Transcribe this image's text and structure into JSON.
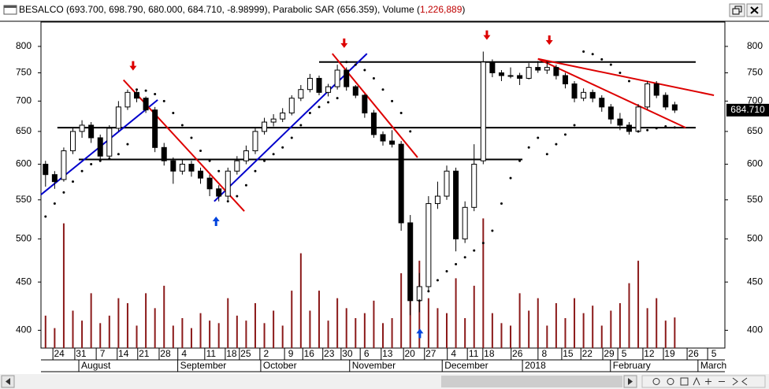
{
  "chart_data": {
    "type": "candlestick",
    "header": {
      "text": "BESALCO (693.700, 698.790, 680.000, 684.710, -8.98999), Parabolic SAR (656.359), Volume (",
      "volume": "1,226,889",
      "suffix": ")"
    },
    "last_label": "684.710",
    "log": true,
    "grid": false,
    "xlim": [
      0,
      150
    ],
    "ylim": [
      383,
      849
    ],
    "yticks": [
      400,
      450,
      500,
      550,
      600,
      650,
      700,
      750,
      800
    ],
    "y2lim": [
      0,
      6000000
    ],
    "xticks": [
      {
        "value": 4.0,
        "label": "24"
      },
      {
        "value": 8.8,
        "label": "31"
      },
      {
        "value": 13.5,
        "label": "7"
      },
      {
        "value": 18.1,
        "label": "14"
      },
      {
        "value": 22.6,
        "label": "21"
      },
      {
        "value": 27.3,
        "label": "28"
      },
      {
        "value": 31.4,
        "label": "4"
      },
      {
        "value": 37.3,
        "label": "11"
      },
      {
        "value": 41.8,
        "label": "18"
      },
      {
        "value": 44.9,
        "label": "25"
      },
      {
        "value": 49.4,
        "label": "2"
      },
      {
        "value": 54.8,
        "label": "9"
      },
      {
        "value": 58.8,
        "label": "16"
      },
      {
        "value": 63.2,
        "label": "23"
      },
      {
        "value": 67.2,
        "label": "30"
      },
      {
        "value": 71.4,
        "label": "6"
      },
      {
        "value": 76.0,
        "label": "13"
      },
      {
        "value": 80.9,
        "label": "20"
      },
      {
        "value": 85.5,
        "label": "27"
      },
      {
        "value": 90.5,
        "label": "4"
      },
      {
        "value": 94.9,
        "label": "11"
      },
      {
        "value": 98.3,
        "label": "18"
      },
      {
        "value": 104.5,
        "label": "26"
      },
      {
        "value": 110.4,
        "label": "8"
      },
      {
        "value": 115.6,
        "label": "15"
      },
      {
        "value": 119.8,
        "label": "22"
      },
      {
        "value": 124.6,
        "label": "29"
      },
      {
        "value": 127.9,
        "label": "5"
      },
      {
        "value": 133.4,
        "label": "12"
      },
      {
        "value": 137.9,
        "label": "19"
      },
      {
        "value": 143.1,
        "label": "26"
      },
      {
        "value": 147.6,
        "label": "5"
      }
    ],
    "month_ticks": [
      {
        "value": 8.3,
        "label": "August"
      },
      {
        "value": 30.0,
        "label": "September"
      },
      {
        "value": 48.2,
        "label": "October"
      },
      {
        "value": 67.7,
        "label": "November"
      },
      {
        "value": 88.0,
        "label": "December"
      },
      {
        "value": 105.6,
        "label": "2018"
      },
      {
        "value": 124.9,
        "label": "February"
      },
      {
        "value": 144.1,
        "label": "March"
      }
    ],
    "up_color": "#ffffff",
    "down_color": "#000000",
    "volume_color": "#8b1a1a",
    "sar_color": "#000000",
    "x": [
      1,
      3,
      5,
      7,
      9,
      11,
      13,
      15,
      17,
      19,
      21,
      23,
      25,
      27,
      29,
      31,
      33,
      35,
      37,
      39,
      41,
      43,
      45,
      47,
      49,
      51,
      53,
      55,
      57,
      59,
      61,
      63,
      65,
      67,
      69,
      71,
      73,
      75,
      77,
      79,
      81,
      83,
      85,
      87,
      89,
      91,
      93,
      95,
      97,
      99,
      101,
      103,
      105,
      107,
      109,
      111,
      113,
      115,
      117,
      119,
      121,
      123,
      125,
      127,
      129,
      131,
      133,
      135,
      137,
      139
    ],
    "open": [
      600,
      585,
      578,
      620,
      650,
      660,
      640,
      612,
      655,
      690,
      715,
      705,
      685,
      625,
      605,
      590,
      600,
      590,
      580,
      565,
      555,
      590,
      605,
      620,
      650,
      665,
      670,
      680,
      705,
      720,
      740,
      715,
      725,
      755,
      725,
      710,
      680,
      645,
      635,
      630,
      520,
      430,
      445,
      545,
      555,
      590,
      500,
      540,
      605,
      770,
      750,
      745,
      745,
      740,
      760,
      755,
      760,
      745,
      730,
      705,
      715,
      705,
      690,
      670,
      660,
      650,
      690,
      730,
      710,
      693.7
    ],
    "high": [
      605,
      590,
      625,
      655,
      668,
      665,
      645,
      660,
      700,
      720,
      720,
      708,
      690,
      632,
      610,
      608,
      605,
      595,
      585,
      570,
      595,
      612,
      628,
      655,
      672,
      678,
      688,
      710,
      728,
      748,
      745,
      730,
      765,
      760,
      728,
      712,
      685,
      650,
      652,
      635,
      530,
      460,
      555,
      575,
      598,
      595,
      548,
      630,
      790,
      775,
      755,
      760,
      750,
      768,
      772,
      770,
      765,
      750,
      735,
      722,
      720,
      710,
      695,
      680,
      665,
      695,
      735,
      735,
      715,
      698.79
    ],
    "low": [
      568,
      565,
      575,
      615,
      640,
      632,
      605,
      608,
      650,
      685,
      698,
      680,
      618,
      598,
      572,
      585,
      582,
      572,
      555,
      548,
      550,
      585,
      600,
      615,
      645,
      658,
      665,
      676,
      700,
      715,
      710,
      708,
      720,
      718,
      705,
      672,
      640,
      628,
      625,
      510,
      415,
      418,
      440,
      538,
      550,
      485,
      495,
      535,
      600,
      742,
      735,
      740,
      728,
      738,
      750,
      748,
      738,
      722,
      698,
      700,
      698,
      682,
      662,
      652,
      645,
      648,
      686,
      705,
      685,
      680
    ],
    "close": [
      585,
      575,
      620,
      650,
      660,
      640,
      612,
      655,
      690,
      715,
      705,
      685,
      625,
      605,
      590,
      600,
      590,
      580,
      565,
      555,
      590,
      605,
      620,
      650,
      665,
      670,
      680,
      705,
      720,
      740,
      715,
      725,
      755,
      725,
      710,
      680,
      645,
      635,
      630,
      520,
      430,
      445,
      545,
      555,
      590,
      500,
      540,
      600,
      770,
      750,
      745,
      745,
      740,
      760,
      755,
      760,
      745,
      730,
      705,
      715,
      705,
      690,
      670,
      660,
      650,
      690,
      730,
      710,
      690,
      684.71
    ],
    "sar": [
      528,
      545,
      560,
      575,
      590,
      600,
      605,
      608,
      615,
      630,
      720,
      718,
      712,
      700,
      680,
      660,
      640,
      620,
      605,
      590,
      548,
      555,
      570,
      590,
      605,
      615,
      625,
      640,
      660,
      680,
      690,
      698,
      705,
      770,
      765,
      755,
      740,
      720,
      700,
      680,
      650,
      430,
      440,
      452,
      462,
      470,
      478,
      486,
      495,
      510,
      545,
      580,
      605,
      625,
      640,
      615,
      630,
      645,
      660,
      790,
      785,
      775,
      765,
      750,
      735,
      650,
      652,
      655,
      658,
      656.359
    ],
    "volume": [
      1300000,
      800000,
      5000000,
      1500000,
      1100000,
      2200000,
      1000000,
      1300000,
      2000000,
      1800000,
      900000,
      2200000,
      1600000,
      2500000,
      900000,
      1200000,
      800000,
      1400000,
      1100000,
      1000000,
      2000000,
      1300000,
      1100000,
      1800000,
      1000000,
      1500000,
      900000,
      2300000,
      3800000,
      1500000,
      2300000,
      1100000,
      2000000,
      1600000,
      1200000,
      1400000,
      1900000,
      1000000,
      1200000,
      3000000,
      4800000,
      3500000,
      2000000,
      1600000,
      1400000,
      2800000,
      1200000,
      2500000,
      5200000,
      1400000,
      1000000,
      900000,
      2200000,
      1500000,
      2000000,
      900000,
      1800000,
      1200000,
      2000000,
      1400000,
      1700000,
      900000,
      1500000,
      1800000,
      2600000,
      3500000,
      1600000,
      2000000,
      1100000,
      1226889
    ],
    "levels": [
      {
        "color": "#000000",
        "x": [
          61,
          143.6
        ],
        "y": [
          770,
          770
        ]
      },
      {
        "color": "#000000",
        "x": [
          3.6,
          143.6
        ],
        "y": [
          656,
          656
        ]
      },
      {
        "color": "#000000",
        "x": [
          8.3,
          105.6
        ],
        "y": [
          607,
          607
        ]
      }
    ],
    "trendlines": [
      {
        "color": "#0000cc",
        "x": [
          0,
          25.6
        ],
        "y": [
          557,
          702
        ]
      },
      {
        "color": "#0000cc",
        "x": [
          38,
          71.5
        ],
        "y": [
          548,
          786
        ]
      },
      {
        "color": "#dd0000",
        "x": [
          18.1,
          44.6
        ],
        "y": [
          737,
          535
        ]
      },
      {
        "color": "#dd0000",
        "x": [
          63.9,
          82.6
        ],
        "y": [
          786,
          610
        ]
      },
      {
        "color": "#dd0000",
        "x": [
          109,
          147.6
        ],
        "y": [
          776,
          710
        ]
      },
      {
        "color": "#dd0000",
        "x": [
          109,
          141.4
        ],
        "y": [
          776,
          656
        ]
      }
    ],
    "signals": [
      {
        "x": 20.2,
        "y": 757,
        "dir": "down",
        "color": "#dd0000"
      },
      {
        "x": 66.5,
        "y": 800,
        "dir": "down",
        "color": "#dd0000"
      },
      {
        "x": 97.8,
        "y": 816,
        "dir": "down",
        "color": "#dd0000"
      },
      {
        "x": 111.5,
        "y": 806,
        "dir": "down",
        "color": "#dd0000"
      },
      {
        "x": 38.4,
        "y": 526,
        "dir": "up",
        "color": "#0044dd"
      },
      {
        "x": 83.1,
        "y": 400,
        "dir": "up",
        "color": "#0044dd"
      }
    ]
  }
}
